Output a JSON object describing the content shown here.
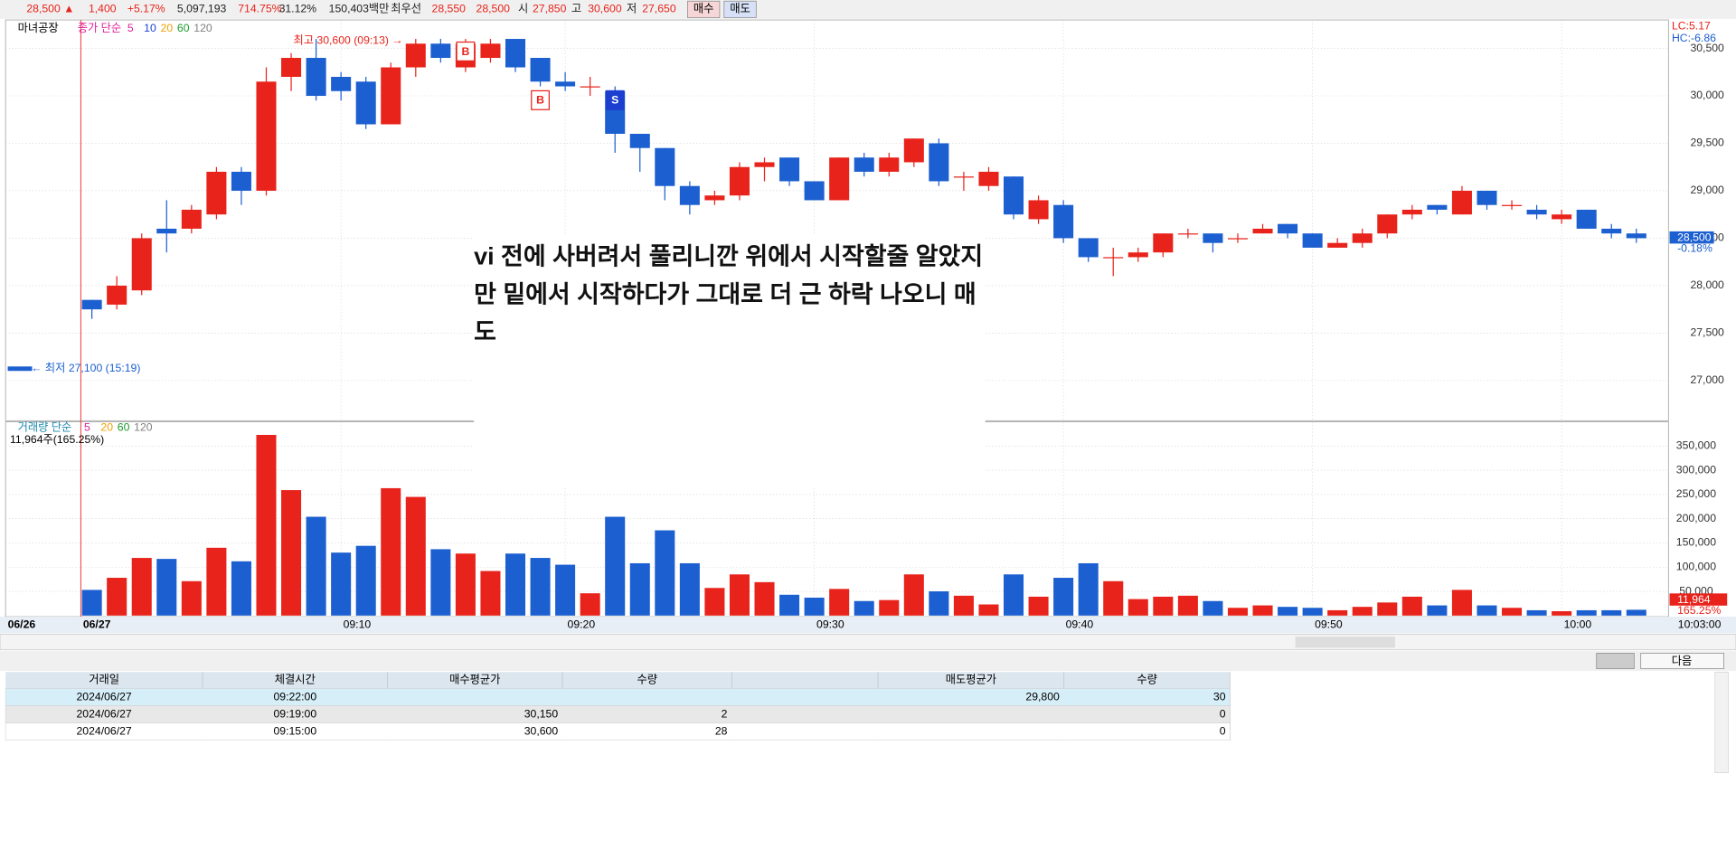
{
  "header": {
    "price": "28,500 ▲",
    "change": "1,400",
    "rate": "+5.17%",
    "volume": "5,097,193",
    "vol_ratio": "714.75%",
    "turnover": "31.12%",
    "amount": "150,403백만",
    "best_label": "최우선",
    "best_ask": "28,550",
    "best_bid": "28,500",
    "open_label": "시",
    "open": "27,850",
    "high_label": "고",
    "high": "30,600",
    "low_label": "저",
    "low": "27,650",
    "buy": "매수",
    "sell": "매도"
  },
  "chart_data": [
    {
      "type": "candlestick",
      "stock": "마녀공장",
      "indicator_label": "종가 단순",
      "ma_periods": [
        5,
        10,
        20,
        60,
        120
      ],
      "ma_colors": [
        "#e0219a",
        "#1c3fd0",
        "#f0a000",
        "#1a9a2a",
        "#808080"
      ],
      "up_color": "#e8231b",
      "down_color": "#1c5fd0",
      "open": [
        27850,
        27800,
        27950,
        28600,
        28600,
        28750,
        29200,
        29000,
        30200,
        30400,
        30200,
        30150,
        29700,
        30300,
        30550,
        30300,
        30400,
        30600,
        30400,
        30150,
        30100,
        30050,
        29600,
        29450,
        29050,
        28900,
        28950,
        29250,
        29350,
        29100,
        28900,
        29350,
        29200,
        29300,
        29500,
        29150,
        29050,
        29150,
        28700,
        28850,
        28500,
        28300,
        28300,
        28350,
        28550,
        28550,
        28500,
        28550,
        28650,
        28550,
        28400,
        28450,
        28550,
        28750,
        28850,
        28750,
        29000,
        28850,
        28800,
        28700,
        28800,
        28600,
        28550
      ],
      "high": [
        27850,
        28100,
        28550,
        28900,
        28850,
        29250,
        29250,
        30300,
        30450,
        30600,
        30250,
        30200,
        30350,
        30600,
        30600,
        30600,
        30600,
        30600,
        30400,
        30250,
        30200,
        30100,
        29600,
        29450,
        29100,
        29000,
        29300,
        29350,
        29350,
        29100,
        29350,
        29400,
        29400,
        29550,
        29550,
        29200,
        29250,
        29150,
        28950,
        28900,
        28500,
        28400,
        28400,
        28550,
        28600,
        28550,
        28550,
        28650,
        28650,
        28550,
        28500,
        28600,
        28750,
        28850,
        28850,
        29050,
        29000,
        28900,
        28850,
        28800,
        28800,
        28650,
        28600
      ],
      "low": [
        27650,
        27750,
        27900,
        28350,
        28550,
        28700,
        28850,
        28950,
        30050,
        29950,
        29950,
        29650,
        29700,
        30200,
        30350,
        30250,
        30350,
        30250,
        30100,
        30050,
        30000,
        29400,
        29200,
        28900,
        28750,
        28850,
        28900,
        29100,
        29050,
        28900,
        28900,
        29150,
        29150,
        29250,
        29050,
        29000,
        29000,
        28700,
        28650,
        28450,
        28250,
        28100,
        28250,
        28300,
        28500,
        28350,
        28450,
        28550,
        28500,
        28400,
        28400,
        28400,
        28500,
        28700,
        28750,
        28750,
        28800,
        28800,
        28700,
        28650,
        28600,
        28500,
        28450
      ],
      "close": [
        27750,
        28000,
        28500,
        28550,
        28800,
        29200,
        29000,
        30150,
        30400,
        30000,
        30050,
        29700,
        30300,
        30550,
        30400,
        30550,
        30550,
        30300,
        30150,
        30100,
        30100,
        29600,
        29450,
        29050,
        28850,
        28950,
        29250,
        29300,
        29100,
        28900,
        29350,
        29200,
        29350,
        29550,
        29100,
        29150,
        29200,
        28750,
        28900,
        28500,
        28300,
        28300,
        28350,
        28550,
        28550,
        28450,
        28500,
        28600,
        28550,
        28400,
        28450,
        28550,
        28750,
        28800,
        28800,
        29000,
        28850,
        28850,
        28750,
        28750,
        28600,
        28550,
        28500
      ],
      "ylim": [
        26600,
        30800
      ],
      "yticks": [
        {
          "value": 27000,
          "label": "27,000"
        },
        {
          "value": 27500,
          "label": "27,500"
        },
        {
          "value": 28000,
          "label": "28,000"
        },
        {
          "value": 28500,
          "label": "28,500"
        },
        {
          "value": 29000,
          "label": "29,000"
        },
        {
          "value": 29500,
          "label": "29,500"
        },
        {
          "value": 30000,
          "label": "30,000"
        },
        {
          "value": 30500,
          "label": "30,500"
        }
      ],
      "xticks": [
        {
          "value": 10,
          "label": "09:10"
        },
        {
          "value": 19,
          "label": "09:20"
        },
        {
          "value": 29,
          "label": "09:30"
        },
        {
          "value": 39,
          "label": "09:40"
        },
        {
          "value": 49,
          "label": "09:50"
        },
        {
          "value": 59,
          "label": "10:00"
        }
      ],
      "day_labels": [
        "06/26",
        "06/27"
      ],
      "cursor_time": "10:03:00",
      "high_note": "최고 30,600 (09:13) →",
      "low_note": "← 최저 27,100 (15:19)",
      "lc": "LC:5.17",
      "hc": "HC:-6.86",
      "last_price": "28,500",
      "last_change": "-0.18%",
      "markers": [
        {
          "index": 15,
          "label": "B"
        },
        {
          "index": 18,
          "label": "B"
        },
        {
          "index": 21,
          "label": "S"
        }
      ],
      "grid": true
    },
    {
      "type": "bar",
      "indicator_label": "거래량 단순",
      "ma_periods": [
        5,
        20,
        60,
        120
      ],
      "ma_colors": [
        "#e0219a",
        "#f0a000",
        "#1a9a2a",
        "#808080"
      ],
      "info": "11,964주(165.25%)",
      "values": [
        53000,
        78000,
        119000,
        117000,
        71000,
        140000,
        112000,
        373000,
        259000,
        204000,
        130000,
        144000,
        263000,
        245000,
        137000,
        128000,
        92000,
        128000,
        119000,
        105000,
        46000,
        204000,
        108000,
        176000,
        108000,
        57000,
        85000,
        69000,
        43000,
        37000,
        55000,
        30000,
        32000,
        85000,
        50000,
        41000,
        23000,
        85000,
        39000,
        78000,
        108000,
        71000,
        34000,
        39000,
        41000,
        30000,
        16000,
        21000,
        18000,
        16000,
        11000,
        18000,
        27000,
        39000,
        21000,
        53000,
        21000,
        16000,
        11000,
        9000,
        11000,
        11000,
        11964
      ],
      "ylim": [
        0,
        400000
      ],
      "yticks": [
        {
          "value": 50000,
          "label": "50,000"
        },
        {
          "value": 100000,
          "label": "100,000"
        },
        {
          "value": 150000,
          "label": "150,000"
        },
        {
          "value": 200000,
          "label": "200,000"
        },
        {
          "value": 250000,
          "label": "250,000"
        },
        {
          "value": 300000,
          "label": "300,000"
        },
        {
          "value": 350000,
          "label": "350,000"
        }
      ],
      "last_value": "11,964",
      "last_ratio": "165.25%",
      "grid": true
    }
  ],
  "note": "vi 전에 사버려서 풀리니깐 위에서 시작할줄 알았지만 밑에서 시작하다가 그대로 더 근 하락 나오니 매도",
  "table": {
    "headers": [
      "거래일",
      "체결시간",
      "매수평균가",
      "수량",
      null,
      "매도평균가",
      "수량"
    ],
    "rows": [
      [
        "2024/06/27",
        "09:22:00",
        null,
        null,
        null,
        "29,800",
        "30"
      ],
      [
        "2024/06/27",
        "09:19:00",
        "30,150",
        "2",
        null,
        null,
        "0"
      ],
      [
        "2024/06/27",
        "09:15:00",
        "30,600",
        "28",
        null,
        null,
        "0"
      ]
    ]
  },
  "next_button": "다음"
}
